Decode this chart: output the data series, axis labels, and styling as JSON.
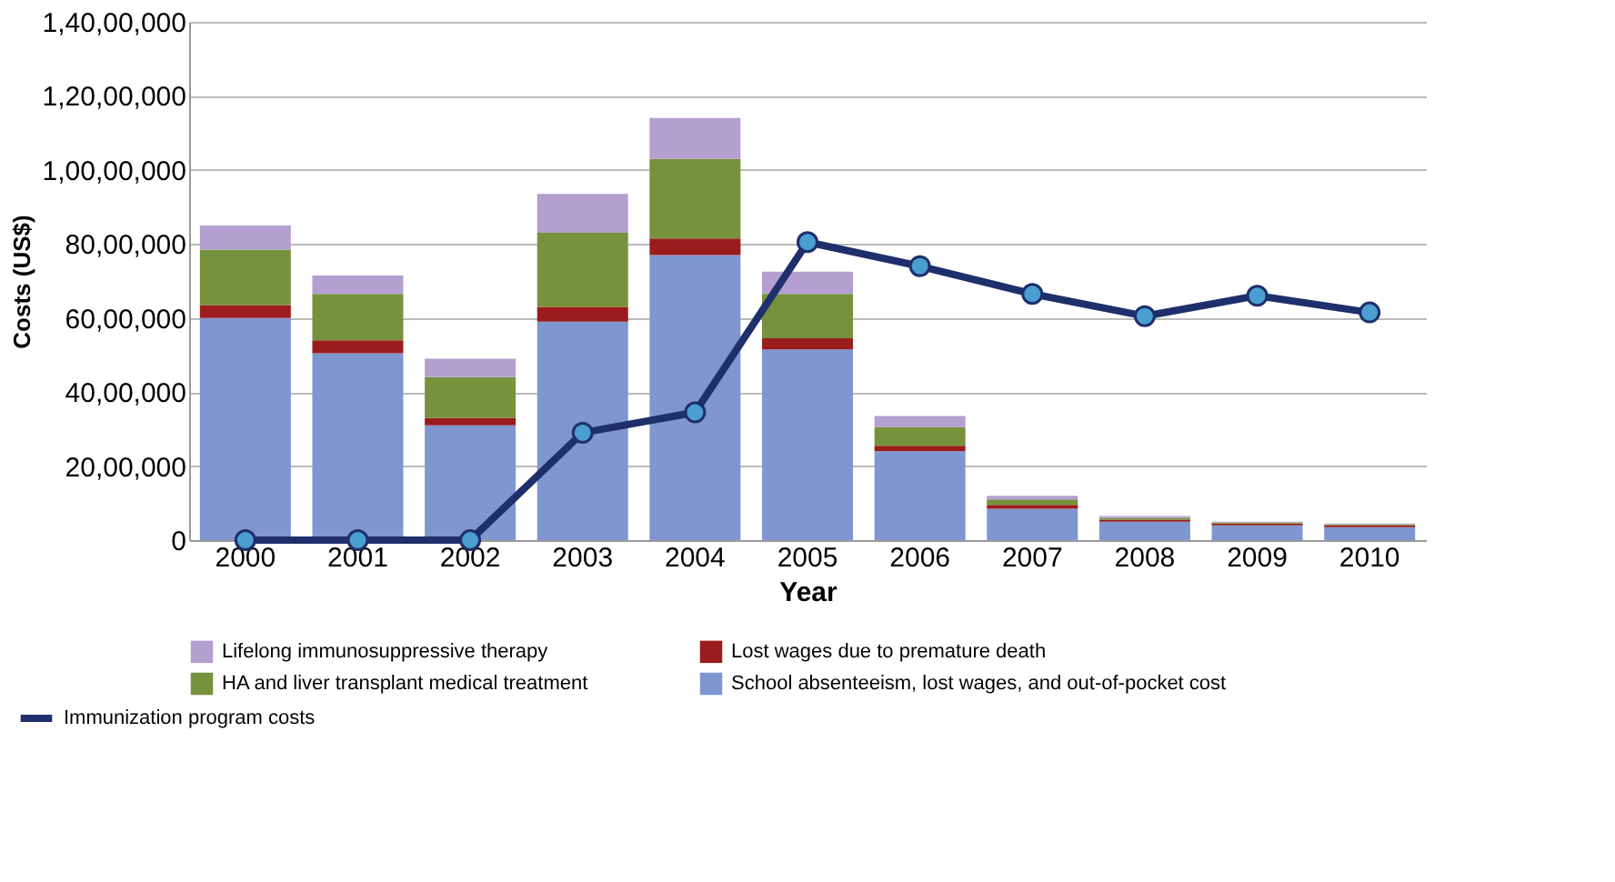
{
  "chart_data": {
    "type": "bar",
    "stacked": true,
    "xlabel": "Year",
    "ylabel": "Costs (US$)",
    "categories": [
      "2000",
      "2001",
      "2002",
      "2003",
      "2004",
      "2005",
      "2006",
      "2007",
      "2008",
      "2009",
      "2010"
    ],
    "series": [
      {
        "name": "School absenteeism, lost wages, and out-of-pocket cost",
        "color": "#7f96d1",
        "values": [
          6000000,
          5050000,
          3100000,
          5900000,
          7700000,
          5150000,
          2400000,
          850000,
          500000,
          400000,
          350000
        ]
      },
      {
        "name": "Lost wages due to premature death",
        "color": "#9b1c1c",
        "values": [
          350000,
          350000,
          200000,
          400000,
          450000,
          300000,
          150000,
          100000,
          50000,
          50000,
          50000
        ]
      },
      {
        "name": "HA and liver transplant medical treatment",
        "color": "#76923c",
        "values": [
          1500000,
          1250000,
          1100000,
          2000000,
          2150000,
          1200000,
          500000,
          150000,
          50000,
          30000,
          30000
        ]
      },
      {
        "name": "Lifelong immunosuppressive therapy",
        "color": "#b4a0d0",
        "values": [
          650000,
          500000,
          500000,
          1050000,
          1100000,
          600000,
          300000,
          100000,
          50000,
          20000,
          20000
        ]
      },
      {
        "name": "Immunization program  costs",
        "type": "line",
        "color": "#1f2f6b",
        "marker": "circle",
        "line_style": "solid",
        "values": [
          0,
          0,
          0,
          2900000,
          3450000,
          8050000,
          7400000,
          6650000,
          6050000,
          6600000,
          6150000
        ]
      }
    ],
    "ylim": [
      0,
      14000000
    ],
    "yticks": [
      {
        "value": 0,
        "label": "0"
      },
      {
        "value": 2000000,
        "label": "20,00,000"
      },
      {
        "value": 4000000,
        "label": "40,00,000"
      },
      {
        "value": 6000000,
        "label": "60,00,000"
      },
      {
        "value": 8000000,
        "label": "80,00,000"
      },
      {
        "value": 10000000,
        "label": "1,00,00,000"
      },
      {
        "value": 12000000,
        "label": "1,20,00,000"
      },
      {
        "value": 14000000,
        "label": "1,40,00,000"
      }
    ],
    "grid": "y",
    "legend": "bottom"
  }
}
